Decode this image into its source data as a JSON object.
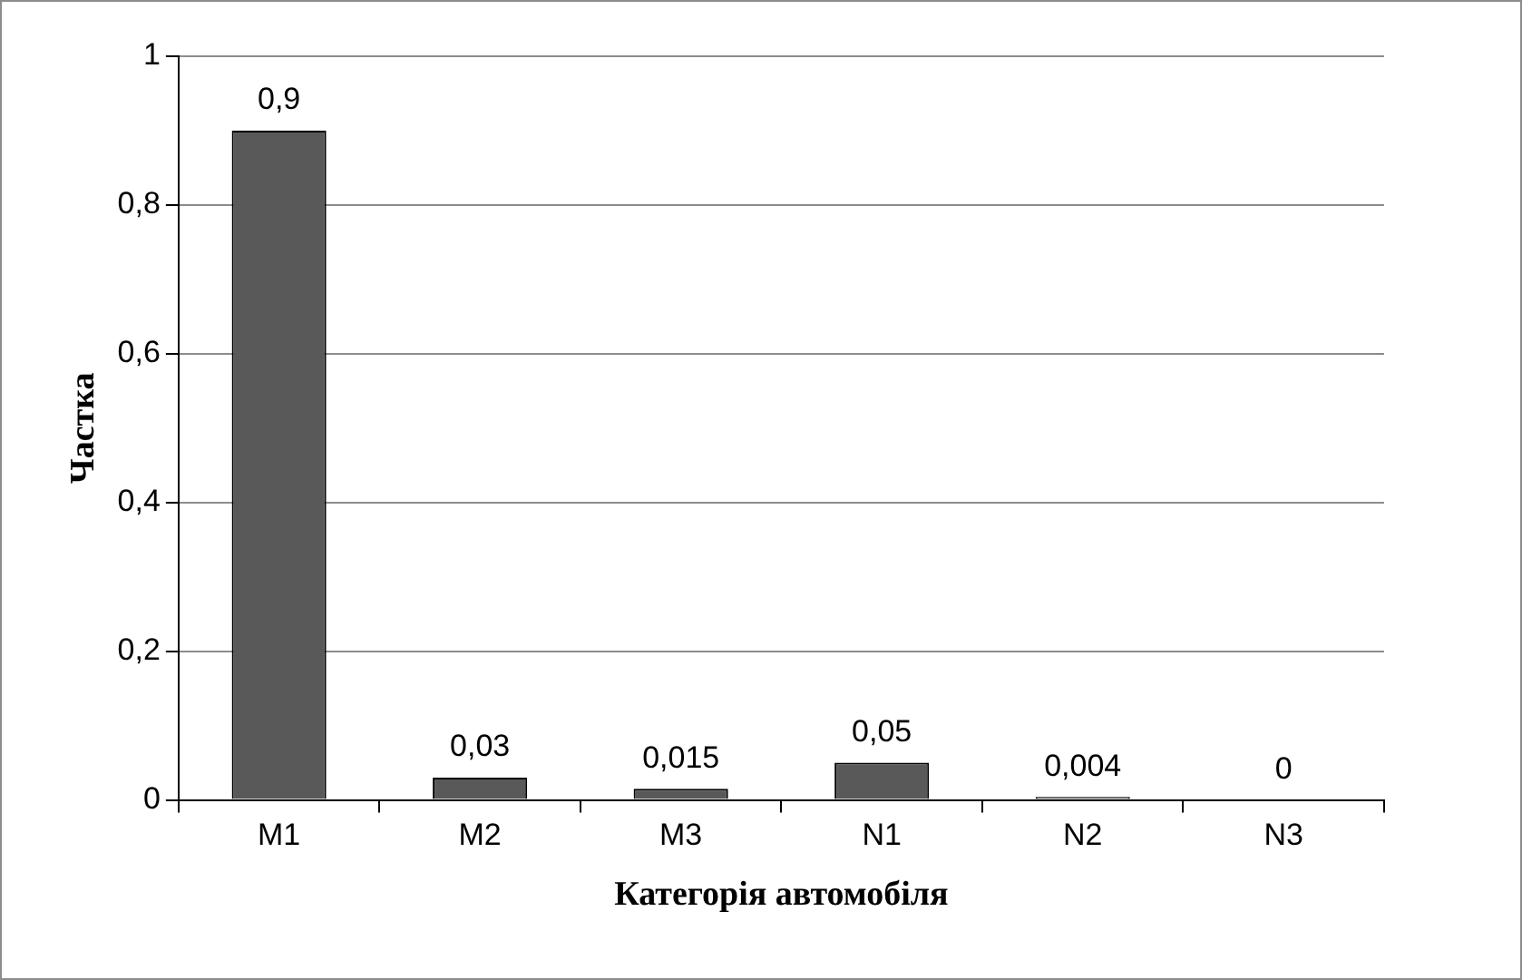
{
  "chart_data": {
    "type": "bar",
    "xlabel": "Категорія автомобіля",
    "ylabel": "Частка",
    "categories": [
      "M1",
      "M2",
      "M3",
      "N1",
      "N2",
      "N3"
    ],
    "values": [
      0.9,
      0.03,
      0.015,
      0.05,
      0.004,
      0
    ],
    "value_labels": [
      "0,9",
      "0,03",
      "0,015",
      "0,05",
      "0,004",
      "0"
    ],
    "color": "#595959",
    "ylim": [
      0,
      1
    ],
    "yticks": [
      {
        "value": 0,
        "label": "0"
      },
      {
        "value": 0.2,
        "label": "0,2"
      },
      {
        "value": 0.4,
        "label": "0,4"
      },
      {
        "value": 0.6,
        "label": "0,6"
      },
      {
        "value": 0.8,
        "label": "0,8"
      },
      {
        "value": 1,
        "label": "1"
      }
    ],
    "grid": "y",
    "legend": false
  }
}
